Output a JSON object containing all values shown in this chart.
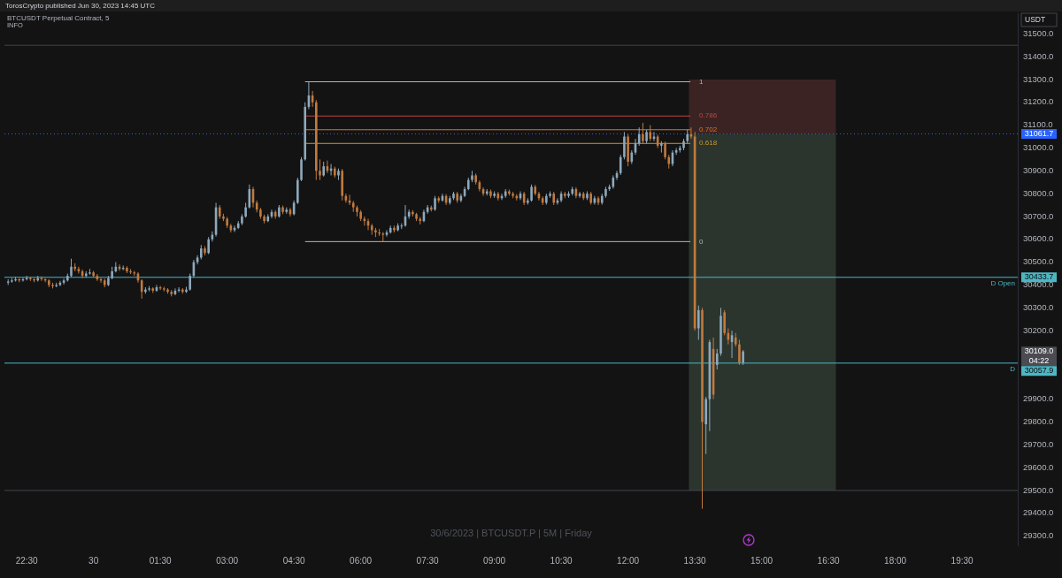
{
  "chart_data": {
    "type": "candlestick",
    "title": "TorosCrypto published Jun 30, 2023 14:45 UTC",
    "subtitle": "BTCUSDT Perpetual Contract, 5",
    "annotations": [
      "INFO",
      "USDT",
      "30/6/2023 | BTCUSDT.P | 5M | Friday",
      "04:22",
      "30433.7",
      "30057.9",
      "31061.7",
      "30109.0"
    ],
    "x": [
      "2023-06-29T22:05",
      "2023-06-29T22:10",
      "2023-06-29T22:15",
      "2023-06-29T22:20",
      "2023-06-29T22:25",
      "2023-06-29T22:30",
      "2023-06-29T22:35",
      "2023-06-29T22:40",
      "2023-06-29T22:45",
      "2023-06-29T22:50",
      "2023-06-29T22:55",
      "2023-06-29T23:00",
      "2023-06-29T23:05",
      "2023-06-29T23:10",
      "2023-06-29T23:15",
      "2023-06-29T23:20",
      "2023-06-29T23:25",
      "2023-06-29T23:30",
      "2023-06-29T23:35",
      "2023-06-29T23:40",
      "2023-06-29T23:45",
      "2023-06-29T23:50",
      "2023-06-29T23:55",
      "2023-06-30T00:00",
      "2023-06-30T00:05",
      "2023-06-30T00:10",
      "2023-06-30T00:15",
      "2023-06-30T00:20",
      "2023-06-30T00:25",
      "2023-06-30T00:30",
      "2023-06-30T00:35",
      "2023-06-30T00:40",
      "2023-06-30T00:45",
      "2023-06-30T00:50",
      "2023-06-30T00:55",
      "2023-06-30T01:00",
      "2023-06-30T01:05",
      "2023-06-30T01:10",
      "2023-06-30T01:15",
      "2023-06-30T01:20",
      "2023-06-30T01:25",
      "2023-06-30T01:30",
      "2023-06-30T01:35",
      "2023-06-30T01:40",
      "2023-06-30T01:45",
      "2023-06-30T01:50",
      "2023-06-30T01:55",
      "2023-06-30T02:00",
      "2023-06-30T02:05",
      "2023-06-30T02:10",
      "2023-06-30T02:15",
      "2023-06-30T02:20",
      "2023-06-30T02:25",
      "2023-06-30T02:30",
      "2023-06-30T02:35",
      "2023-06-30T02:40",
      "2023-06-30T02:45",
      "2023-06-30T02:50",
      "2023-06-30T02:55",
      "2023-06-30T03:00",
      "2023-06-30T03:05",
      "2023-06-30T03:10",
      "2023-06-30T03:15",
      "2023-06-30T03:20",
      "2023-06-30T03:25",
      "2023-06-30T03:30",
      "2023-06-30T03:35",
      "2023-06-30T03:40",
      "2023-06-30T03:45",
      "2023-06-30T03:50",
      "2023-06-30T03:55",
      "2023-06-30T04:00",
      "2023-06-30T04:05",
      "2023-06-30T04:10",
      "2023-06-30T04:15",
      "2023-06-30T04:20",
      "2023-06-30T04:25",
      "2023-06-30T04:30",
      "2023-06-30T04:35",
      "2023-06-30T04:40",
      "2023-06-30T04:45",
      "2023-06-30T04:50",
      "2023-06-30T04:55",
      "2023-06-30T05:00",
      "2023-06-30T05:05",
      "2023-06-30T05:10",
      "2023-06-30T05:15",
      "2023-06-30T05:20",
      "2023-06-30T05:25",
      "2023-06-30T05:30",
      "2023-06-30T05:35",
      "2023-06-30T05:40",
      "2023-06-30T05:45",
      "2023-06-30T05:50",
      "2023-06-30T05:55",
      "2023-06-30T06:00",
      "2023-06-30T06:05",
      "2023-06-30T06:10",
      "2023-06-30T06:15",
      "2023-06-30T06:20",
      "2023-06-30T06:25",
      "2023-06-30T06:30",
      "2023-06-30T06:35",
      "2023-06-30T06:40",
      "2023-06-30T06:45",
      "2023-06-30T06:50",
      "2023-06-30T06:55",
      "2023-06-30T07:00",
      "2023-06-30T07:05",
      "2023-06-30T07:10",
      "2023-06-30T07:15",
      "2023-06-30T07:20",
      "2023-06-30T07:25",
      "2023-06-30T07:30",
      "2023-06-30T07:35",
      "2023-06-30T07:40",
      "2023-06-30T07:45",
      "2023-06-30T07:50",
      "2023-06-30T07:55",
      "2023-06-30T08:00",
      "2023-06-30T08:05",
      "2023-06-30T08:10",
      "2023-06-30T08:15",
      "2023-06-30T08:20",
      "2023-06-30T08:25",
      "2023-06-30T08:30",
      "2023-06-30T08:35",
      "2023-06-30T08:40",
      "2023-06-30T08:45",
      "2023-06-30T08:50",
      "2023-06-30T08:55",
      "2023-06-30T09:00",
      "2023-06-30T09:05",
      "2023-06-30T09:10",
      "2023-06-30T09:15",
      "2023-06-30T09:20",
      "2023-06-30T09:25",
      "2023-06-30T09:30",
      "2023-06-30T09:35",
      "2023-06-30T09:40",
      "2023-06-30T09:45",
      "2023-06-30T09:50",
      "2023-06-30T09:55",
      "2023-06-30T10:00",
      "2023-06-30T10:05",
      "2023-06-30T10:10",
      "2023-06-30T10:15",
      "2023-06-30T10:20",
      "2023-06-30T10:25",
      "2023-06-30T10:30",
      "2023-06-30T10:35",
      "2023-06-30T10:40",
      "2023-06-30T10:45",
      "2023-06-30T10:50",
      "2023-06-30T10:55",
      "2023-06-30T11:00",
      "2023-06-30T11:05",
      "2023-06-30T11:10",
      "2023-06-30T11:15",
      "2023-06-30T11:20",
      "2023-06-30T11:25",
      "2023-06-30T11:30",
      "2023-06-30T11:35",
      "2023-06-30T11:40",
      "2023-06-30T11:45",
      "2023-06-30T11:50",
      "2023-06-30T11:55",
      "2023-06-30T12:00",
      "2023-06-30T12:05",
      "2023-06-30T12:10",
      "2023-06-30T12:15",
      "2023-06-30T12:20",
      "2023-06-30T12:25",
      "2023-06-30T12:30",
      "2023-06-30T12:35",
      "2023-06-30T12:40",
      "2023-06-30T12:45",
      "2023-06-30T12:50",
      "2023-06-30T12:55",
      "2023-06-30T13:00",
      "2023-06-30T13:05",
      "2023-06-30T13:10",
      "2023-06-30T13:15",
      "2023-06-30T13:20",
      "2023-06-30T13:25",
      "2023-06-30T13:30",
      "2023-06-30T13:35",
      "2023-06-30T13:40",
      "2023-06-30T13:45",
      "2023-06-30T13:50",
      "2023-06-30T13:55",
      "2023-06-30T14:00",
      "2023-06-30T14:05",
      "2023-06-30T14:10",
      "2023-06-30T14:15",
      "2023-06-30T14:20",
      "2023-06-30T14:25",
      "2023-06-30T14:30",
      "2023-06-30T14:35"
    ],
    "ohlc": [
      [
        30410,
        30425,
        30400,
        30415
      ],
      [
        30415,
        30430,
        30410,
        30420
      ],
      [
        30420,
        30435,
        30415,
        30425
      ],
      [
        30425,
        30430,
        30412,
        30420
      ],
      [
        30420,
        30432,
        30415,
        30425
      ],
      [
        30425,
        30440,
        30420,
        30430
      ],
      [
        30430,
        30435,
        30418,
        30425
      ],
      [
        30425,
        30430,
        30412,
        30420
      ],
      [
        30420,
        30440,
        30415,
        30430
      ],
      [
        30430,
        30438,
        30418,
        30425
      ],
      [
        30425,
        30430,
        30412,
        30420
      ],
      [
        30420,
        30425,
        30390,
        30400
      ],
      [
        30400,
        30410,
        30385,
        30395
      ],
      [
        30395,
        30410,
        30390,
        30400
      ],
      [
        30400,
        30418,
        30395,
        30410
      ],
      [
        30410,
        30428,
        30402,
        30420
      ],
      [
        30420,
        30450,
        30415,
        30440
      ],
      [
        30440,
        30515,
        30435,
        30480
      ],
      [
        30480,
        30495,
        30460,
        30470
      ],
      [
        30470,
        30480,
        30450,
        30460
      ],
      [
        30460,
        30468,
        30430,
        30440
      ],
      [
        30440,
        30460,
        30432,
        30450
      ],
      [
        30450,
        30470,
        30445,
        30455
      ],
      [
        30455,
        30462,
        30432,
        30440
      ],
      [
        30440,
        30448,
        30418,
        30425
      ],
      [
        30425,
        30432,
        30410,
        30420
      ],
      [
        30420,
        30428,
        30390,
        30400
      ],
      [
        30400,
        30440,
        30395,
        30430
      ],
      [
        30430,
        30480,
        30425,
        30460
      ],
      [
        30460,
        30500,
        30455,
        30480
      ],
      [
        30480,
        30490,
        30462,
        30470
      ],
      [
        30470,
        30485,
        30465,
        30475
      ],
      [
        30475,
        30482,
        30452,
        30460
      ],
      [
        30460,
        30470,
        30448,
        30455
      ],
      [
        30455,
        30462,
        30440,
        30450
      ],
      [
        30450,
        30456,
        30410,
        30420
      ],
      [
        30420,
        30425,
        30340,
        30370
      ],
      [
        30370,
        30390,
        30362,
        30380
      ],
      [
        30380,
        30395,
        30372,
        30385
      ],
      [
        30385,
        30390,
        30365,
        30375
      ],
      [
        30375,
        30400,
        30370,
        30390
      ],
      [
        30390,
        30396,
        30378,
        30385
      ],
      [
        30385,
        30392,
        30372,
        30380
      ],
      [
        30380,
        30386,
        30362,
        30370
      ],
      [
        30370,
        30378,
        30350,
        30360
      ],
      [
        30360,
        30385,
        30355,
        30375
      ],
      [
        30375,
        30390,
        30368,
        30380
      ],
      [
        30380,
        30386,
        30362,
        30370
      ],
      [
        30370,
        30392,
        30365,
        30380
      ],
      [
        30380,
        30450,
        30375,
        30440
      ],
      [
        30440,
        30510,
        30432,
        30500
      ],
      [
        30500,
        30530,
        30490,
        30520
      ],
      [
        30520,
        30575,
        30512,
        30560
      ],
      [
        30560,
        30570,
        30530,
        30540
      ],
      [
        30540,
        30610,
        30535,
        30600
      ],
      [
        30600,
        30635,
        30590,
        30620
      ],
      [
        30620,
        30760,
        30612,
        30740
      ],
      [
        30740,
        30750,
        30690,
        30700
      ],
      [
        30700,
        30712,
        30680,
        30690
      ],
      [
        30690,
        30698,
        30650,
        30660
      ],
      [
        30660,
        30668,
        30630,
        30640
      ],
      [
        30640,
        30660,
        30632,
        30650
      ],
      [
        30650,
        30680,
        30645,
        30670
      ],
      [
        30670,
        30710,
        30662,
        30700
      ],
      [
        30700,
        30760,
        30695,
        30740
      ],
      [
        30740,
        30840,
        30735,
        30820
      ],
      [
        30820,
        30830,
        30740,
        30760
      ],
      [
        30760,
        30770,
        30718,
        30730
      ],
      [
        30730,
        30738,
        30690,
        30700
      ],
      [
        30700,
        30708,
        30670,
        30680
      ],
      [
        30680,
        30710,
        30675,
        30700
      ],
      [
        30700,
        30730,
        30692,
        30720
      ],
      [
        30720,
        30728,
        30690,
        30700
      ],
      [
        30700,
        30750,
        30695,
        30740
      ],
      [
        30740,
        30748,
        30710,
        30720
      ],
      [
        30720,
        30740,
        30712,
        30730
      ],
      [
        30730,
        30738,
        30700,
        30710
      ],
      [
        30710,
        30770,
        30705,
        30760
      ],
      [
        30760,
        30870,
        30755,
        30860
      ],
      [
        30860,
        30960,
        30855,
        30950
      ],
      [
        30950,
        31200,
        30945,
        31180
      ],
      [
        31180,
        31290,
        31170,
        31230
      ],
      [
        31230,
        31250,
        31180,
        31200
      ],
      [
        31200,
        31210,
        30860,
        30900
      ],
      [
        30900,
        30950,
        30860,
        30880
      ],
      [
        30880,
        30940,
        30875,
        30920
      ],
      [
        30920,
        30945,
        30890,
        30900
      ],
      [
        30900,
        30930,
        30880,
        30910
      ],
      [
        30910,
        30918,
        30870,
        30880
      ],
      [
        30880,
        30910,
        30860,
        30900
      ],
      [
        30900,
        30908,
        30770,
        30790
      ],
      [
        30790,
        30800,
        30760,
        30770
      ],
      [
        30770,
        30795,
        30750,
        30760
      ],
      [
        30760,
        30768,
        30720,
        30740
      ],
      [
        30740,
        30748,
        30700,
        30720
      ],
      [
        30720,
        30728,
        30680,
        30690
      ],
      [
        30690,
        30700,
        30660,
        30680
      ],
      [
        30680,
        30690,
        30640,
        30660
      ],
      [
        30660,
        30668,
        30620,
        30640
      ],
      [
        30640,
        30650,
        30610,
        30630
      ],
      [
        30630,
        30645,
        30615,
        30625
      ],
      [
        30625,
        30632,
        30590,
        30620
      ],
      [
        30620,
        30640,
        30612,
        30630
      ],
      [
        30630,
        30660,
        30625,
        30650
      ],
      [
        30650,
        30660,
        30630,
        30640
      ],
      [
        30640,
        30670,
        30635,
        30660
      ],
      [
        30660,
        30670,
        30645,
        30660
      ],
      [
        30660,
        30750,
        30655,
        30700
      ],
      [
        30700,
        30730,
        30690,
        30720
      ],
      [
        30720,
        30728,
        30700,
        30710
      ],
      [
        30710,
        30716,
        30680,
        30690
      ],
      [
        30690,
        30698,
        30665,
        30680
      ],
      [
        30680,
        30730,
        30675,
        30720
      ],
      [
        30720,
        30750,
        30712,
        30740
      ],
      [
        30740,
        30748,
        30722,
        30730
      ],
      [
        30730,
        30790,
        30725,
        30780
      ],
      [
        30780,
        30788,
        30760,
        30770
      ],
      [
        30770,
        30800,
        30765,
        30790
      ],
      [
        30790,
        30798,
        30750,
        30760
      ],
      [
        30760,
        30790,
        30752,
        30780
      ],
      [
        30780,
        30808,
        30772,
        30800
      ],
      [
        30800,
        30808,
        30760,
        30770
      ],
      [
        30770,
        30800,
        30762,
        30790
      ],
      [
        30790,
        30830,
        30785,
        30820
      ],
      [
        30820,
        30870,
        30815,
        30860
      ],
      [
        30860,
        30900,
        30850,
        30880
      ],
      [
        30880,
        30888,
        30840,
        30850
      ],
      [
        30850,
        30858,
        30810,
        30820
      ],
      [
        30820,
        30828,
        30790,
        30800
      ],
      [
        30800,
        30820,
        30792,
        30810
      ],
      [
        30810,
        30818,
        30780,
        30790
      ],
      [
        30790,
        30810,
        30782,
        30800
      ],
      [
        30800,
        30808,
        30770,
        30780
      ],
      [
        30780,
        30800,
        30772,
        30790
      ],
      [
        30790,
        30820,
        30782,
        30810
      ],
      [
        30810,
        30818,
        30792,
        30800
      ],
      [
        30800,
        30808,
        30780,
        30790
      ],
      [
        30790,
        30798,
        30770,
        30780
      ],
      [
        30780,
        30810,
        30772,
        30800
      ],
      [
        30800,
        30808,
        30750,
        30760
      ],
      [
        30760,
        30780,
        30752,
        30770
      ],
      [
        30770,
        30840,
        30765,
        30830
      ],
      [
        30830,
        30838,
        30792,
        30800
      ],
      [
        30800,
        30808,
        30770,
        30780
      ],
      [
        30780,
        30788,
        30750,
        30760
      ],
      [
        30760,
        30800,
        30752,
        30790
      ],
      [
        30790,
        30810,
        30782,
        30800
      ],
      [
        30800,
        30808,
        30750,
        30760
      ],
      [
        30760,
        30780,
        30752,
        30770
      ],
      [
        30770,
        30810,
        30762,
        30800
      ],
      [
        30800,
        30808,
        30780,
        30790
      ],
      [
        30790,
        30810,
        30782,
        30800
      ],
      [
        30800,
        30830,
        30792,
        30820
      ],
      [
        30820,
        30828,
        30780,
        30790
      ],
      [
        30790,
        30808,
        30782,
        30800
      ],
      [
        30800,
        30808,
        30772,
        30780
      ],
      [
        30780,
        30810,
        30772,
        30800
      ],
      [
        30800,
        30808,
        30752,
        30760
      ],
      [
        30760,
        30790,
        30752,
        30780
      ],
      [
        30780,
        30788,
        30750,
        30760
      ],
      [
        30760,
        30800,
        30752,
        30790
      ],
      [
        30790,
        30830,
        30782,
        30820
      ],
      [
        30820,
        30840,
        30812,
        30830
      ],
      [
        30830,
        30880,
        30822,
        30870
      ],
      [
        30870,
        30900,
        30860,
        30890
      ],
      [
        30890,
        30970,
        30882,
        30960
      ],
      [
        30960,
        31070,
        30950,
        31050
      ],
      [
        31050,
        31060,
        30920,
        30940
      ],
      [
        30940,
        30990,
        30930,
        30980
      ],
      [
        30980,
        31040,
        30970,
        31020
      ],
      [
        31020,
        31090,
        31010,
        31060
      ],
      [
        31060,
        31110,
        31020,
        31030
      ],
      [
        31030,
        31080,
        31020,
        31070
      ],
      [
        31070,
        31100,
        31030,
        31040
      ],
      [
        31040,
        31070,
        31030,
        31050
      ],
      [
        31050,
        31058,
        31000,
        31010
      ],
      [
        31010,
        31030,
        30980,
        31020
      ],
      [
        31020,
        31028,
        30950,
        30960
      ],
      [
        30960,
        30970,
        30910,
        30930
      ],
      [
        30930,
        30990,
        30920,
        30980
      ],
      [
        30980,
        31000,
        30970,
        30990
      ],
      [
        30990,
        31010,
        30980,
        31000
      ],
      [
        31000,
        31040,
        30990,
        31030
      ],
      [
        31030,
        31080,
        31020,
        31060
      ],
      [
        31060,
        31090,
        31040,
        31050
      ],
      [
        31050,
        31070,
        30200,
        30210
      ],
      [
        30210,
        30310,
        30160,
        30290
      ],
      [
        30290,
        30300,
        29420,
        29800
      ],
      [
        29790,
        29910,
        29660,
        29900
      ],
      [
        29900,
        30160,
        29760,
        30150
      ],
      [
        30120,
        30170,
        29900,
        29920
      ],
      [
        30050,
        30120,
        30030,
        30100
      ],
      [
        30100,
        30300,
        30090,
        30265
      ],
      [
        30280,
        30290,
        30180,
        30190
      ],
      [
        30190,
        30210,
        30140,
        30160
      ],
      [
        30150,
        30200,
        30080,
        30180
      ],
      [
        30170,
        30190,
        30130,
        30140
      ],
      [
        30140,
        30160,
        30050,
        30060
      ],
      [
        30060,
        30115,
        30050,
        30109
      ]
    ],
    "colors": [
      "#8ea9bd",
      "#8ea9bd",
      "#8ea9bd",
      "#c27a3e",
      "#8ea9bd",
      "#8ea9bd",
      "#c27a3e",
      "#c27a3e",
      "#8ea9bd",
      "#c27a3e",
      "#c27a3e",
      "#c27a3e",
      "#c27a3e",
      "#8ea9bd",
      "#8ea9bd",
      "#8ea9bd",
      "#8ea9bd",
      "#8ea9bd",
      "#c27a3e",
      "#c27a3e",
      "#c27a3e",
      "#8ea9bd",
      "#8ea9bd",
      "#c27a3e",
      "#c27a3e",
      "#c27a3e",
      "#c27a3e",
      "#8ea9bd",
      "#8ea9bd",
      "#8ea9bd",
      "#c27a3e",
      "#8ea9bd",
      "#c27a3e",
      "#c27a3e",
      "#c27a3e",
      "#c27a3e",
      "#c27a3e",
      "#8ea9bd",
      "#8ea9bd",
      "#c27a3e",
      "#8ea9bd",
      "#c27a3e",
      "#c27a3e",
      "#c27a3e",
      "#c27a3e",
      "#8ea9bd",
      "#8ea9bd",
      "#c27a3e",
      "#8ea9bd",
      "#8ea9bd",
      "#8ea9bd",
      "#8ea9bd",
      "#8ea9bd",
      "#c27a3e",
      "#8ea9bd",
      "#8ea9bd",
      "#8ea9bd",
      "#c27a3e",
      "#c27a3e",
      "#c27a3e",
      "#c27a3e",
      "#8ea9bd",
      "#8ea9bd",
      "#8ea9bd",
      "#8ea9bd",
      "#8ea9bd",
      "#c27a3e",
      "#c27a3e",
      "#c27a3e",
      "#c27a3e",
      "#8ea9bd",
      "#8ea9bd",
      "#c27a3e",
      "#8ea9bd",
      "#c27a3e",
      "#8ea9bd",
      "#c27a3e",
      "#8ea9bd",
      "#8ea9bd",
      "#8ea9bd",
      "#8ea9bd",
      "#8ea9bd",
      "#c27a3e",
      "#c27a3e",
      "#c27a3e",
      "#8ea9bd",
      "#c27a3e",
      "#8ea9bd",
      "#c27a3e",
      "#8ea9bd",
      "#c27a3e",
      "#c27a3e",
      "#c27a3e",
      "#c27a3e",
      "#c27a3e",
      "#c27a3e",
      "#c27a3e",
      "#c27a3e",
      "#c27a3e",
      "#c27a3e",
      "#c27a3e",
      "#c27a3e",
      "#8ea9bd",
      "#8ea9bd",
      "#c27a3e",
      "#8ea9bd",
      "#8ea9bd",
      "#8ea9bd",
      "#8ea9bd",
      "#c27a3e",
      "#c27a3e",
      "#c27a3e",
      "#8ea9bd",
      "#8ea9bd",
      "#c27a3e",
      "#8ea9bd",
      "#c27a3e",
      "#8ea9bd",
      "#c27a3e",
      "#8ea9bd",
      "#8ea9bd",
      "#c27a3e",
      "#8ea9bd",
      "#8ea9bd",
      "#8ea9bd",
      "#8ea9bd",
      "#c27a3e",
      "#c27a3e",
      "#c27a3e",
      "#8ea9bd",
      "#c27a3e",
      "#8ea9bd",
      "#c27a3e",
      "#8ea9bd",
      "#8ea9bd",
      "#c27a3e",
      "#c27a3e",
      "#c27a3e",
      "#8ea9bd",
      "#c27a3e",
      "#8ea9bd",
      "#8ea9bd",
      "#c27a3e",
      "#c27a3e",
      "#c27a3e",
      "#8ea9bd",
      "#8ea9bd",
      "#c27a3e",
      "#8ea9bd",
      "#8ea9bd",
      "#c27a3e",
      "#8ea9bd",
      "#8ea9bd",
      "#c27a3e",
      "#8ea9bd",
      "#c27a3e",
      "#8ea9bd",
      "#c27a3e",
      "#8ea9bd",
      "#c27a3e",
      "#8ea9bd",
      "#8ea9bd",
      "#8ea9bd",
      "#8ea9bd",
      "#8ea9bd",
      "#8ea9bd",
      "#8ea9bd",
      "#c27a3e",
      "#8ea9bd",
      "#8ea9bd",
      "#8ea9bd",
      "#c27a3e",
      "#8ea9bd",
      "#c27a3e",
      "#8ea9bd",
      "#c27a3e",
      "#8ea9bd",
      "#c27a3e",
      "#c27a3e",
      "#8ea9bd",
      "#8ea9bd",
      "#8ea9bd",
      "#8ea9bd",
      "#8ea9bd",
      "#c27a3e",
      "#c27a3e",
      "#8ea9bd",
      "#c27a3e",
      "#8ea9bd",
      "#8ea9bd",
      "#c27a3e",
      "#8ea9bd",
      "#8ea9bd",
      "#c27a3e",
      "#c27a3e",
      "#8ea9bd",
      "#c27a3e",
      "#c27a3e",
      "#8ea9bd"
    ],
    "series": [
      {
        "type": "area",
        "color": "#3b2324",
        "x": [
          "2023-06-30T13:22",
          "2023-06-30T16:40"
        ],
        "values": [
          31300,
          31300
        ]
      },
      {
        "type": "area",
        "color": "#2b352d",
        "x": [
          "2023-06-30T13:22",
          "2023-06-30T16:40"
        ],
        "values": [
          31062,
          31062
        ]
      },
      {
        "type": "line",
        "color": "#434651",
        "x": [
          "2023-06-29T22:00",
          "2023-06-30T20:45"
        ],
        "values": [
          29500,
          29500
        ]
      },
      {
        "type": "line",
        "color": "#434651",
        "x": [
          "2023-06-29T22:00",
          "2023-06-30T20:45"
        ],
        "values": [
          31450,
          31450
        ]
      },
      {
        "type": "line",
        "name": "1",
        "color": "#b2b5be",
        "x": [
          "2023-06-30T04:45",
          "2023-06-30T13:24"
        ],
        "values": [
          31290,
          31290
        ]
      },
      {
        "type": "line",
        "name": "0.786",
        "color": "#c0463f",
        "x": [
          "2023-06-30T04:45",
          "2023-06-30T13:24"
        ],
        "values": [
          31140,
          31140
        ]
      },
      {
        "type": "line",
        "name": "0.702",
        "color": "#d9772b",
        "x": [
          "2023-06-30T04:45",
          "2023-06-30T13:24"
        ],
        "values": [
          31080,
          31080
        ]
      },
      {
        "type": "line",
        "name": "0.618",
        "color": "#c99a2e",
        "x": [
          "2023-06-30T04:45",
          "2023-06-30T13:24"
        ],
        "values": [
          31020,
          31020
        ]
      },
      {
        "type": "line",
        "name": "0",
        "color": "#b2b5be",
        "x": [
          "2023-06-30T04:45",
          "2023-06-30T13:24"
        ],
        "values": [
          30590,
          30590
        ]
      }
    ],
    "ref_lines": [
      {
        "axis": "y",
        "value": 30433.7,
        "label": "D Open",
        "color": "#4db6c4"
      },
      {
        "axis": "y",
        "value": 30057.9,
        "label": "D",
        "color": "#4db6c4"
      },
      {
        "axis": "y",
        "value": 31061.7,
        "color": "#2962ff",
        "line_style": "dotted"
      }
    ],
    "xlim": [
      "2023-06-29T22:00",
      "2023-06-30T20:45"
    ],
    "xticks": [
      {
        "value": "2023-06-29T22:30",
        "label": "22:30"
      },
      {
        "value": "2023-06-30T00:00",
        "label": "30"
      },
      {
        "value": "2023-06-30T01:30",
        "label": "01:30"
      },
      {
        "value": "2023-06-30T03:00",
        "label": "03:00"
      },
      {
        "value": "2023-06-30T04:30",
        "label": "04:30"
      },
      {
        "value": "2023-06-30T06:00",
        "label": "06:00"
      },
      {
        "value": "2023-06-30T07:30",
        "label": "07:30"
      },
      {
        "value": "2023-06-30T09:00",
        "label": "09:00"
      },
      {
        "value": "2023-06-30T10:30",
        "label": "10:30"
      },
      {
        "value": "2023-06-30T12:00",
        "label": "12:00"
      },
      {
        "value": "2023-06-30T13:30",
        "label": "13:30"
      },
      {
        "value": "2023-06-30T15:00",
        "label": "15:00"
      },
      {
        "value": "2023-06-30T16:30",
        "label": "16:30"
      },
      {
        "value": "2023-06-30T18:00",
        "label": "18:00"
      },
      {
        "value": "2023-06-30T19:30",
        "label": "19:30"
      }
    ],
    "ylim": [
      29260,
      31590
    ],
    "yticks": [
      {
        "value": 29300,
        "label": "29300.0"
      },
      {
        "value": 29400,
        "label": "29400.0"
      },
      {
        "value": 29500,
        "label": "29500.0"
      },
      {
        "value": 29600,
        "label": "29600.0"
      },
      {
        "value": 29700,
        "label": "29700.0"
      },
      {
        "value": 29800,
        "label": "29800.0"
      },
      {
        "value": 29900,
        "label": "29900.0"
      },
      {
        "value": 30200,
        "label": "30200.0"
      },
      {
        "value": 30300,
        "label": "30300.0"
      },
      {
        "value": 30400,
        "label": "30400.0"
      },
      {
        "value": 30500,
        "label": "30500.0"
      },
      {
        "value": 30600,
        "label": "30600.0"
      },
      {
        "value": 30700,
        "label": "30700.0"
      },
      {
        "value": 30800,
        "label": "30800.0"
      },
      {
        "value": 30900,
        "label": "30900.0"
      },
      {
        "value": 31000,
        "label": "31000.0"
      },
      {
        "value": 31100,
        "label": "31100.0"
      },
      {
        "value": 31200,
        "label": "31200.0"
      },
      {
        "value": 31300,
        "label": "31300.0"
      },
      {
        "value": 31400,
        "label": "31400.0"
      },
      {
        "value": 31500,
        "label": "31500.0"
      }
    ],
    "grid": false,
    "legend": false,
    "marker": "none"
  }
}
